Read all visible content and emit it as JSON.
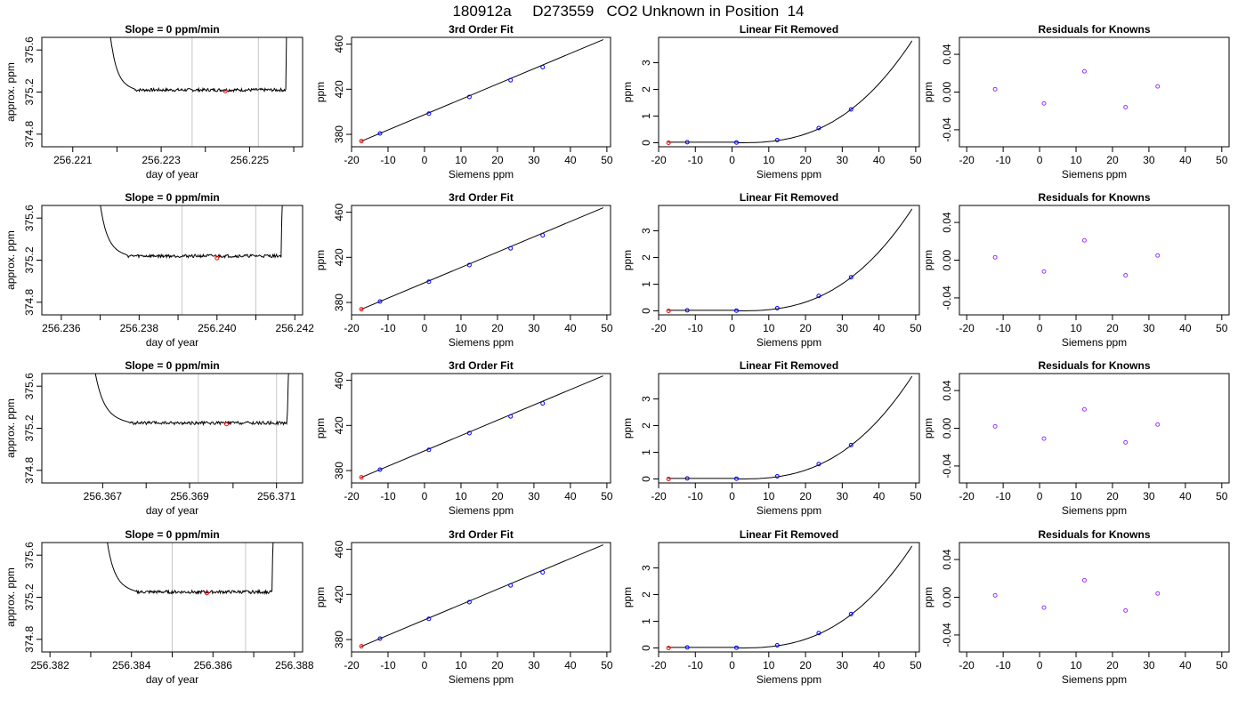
{
  "title": "180912a     D273559   CO2 Unknown in Position  14",
  "colors": {
    "trace": "#000000",
    "known_point": "#0000ff",
    "unknown_point": "#ff0000",
    "residual_point": "#9933ff",
    "window_line": "#c8c8c8"
  },
  "chart_data": [
    {
      "type": "line",
      "row": 0,
      "col": 0,
      "title": "Slope =  0  ppm/min",
      "xlabel": "day of year",
      "ylabel": "approx. ppm",
      "xlim": [
        256.2203,
        256.2262
      ],
      "ylim": [
        374.68,
        375.72
      ],
      "xticks": [
        256.221,
        256.222,
        256.223,
        256.224,
        256.225,
        256.226
      ],
      "xtick_labels": [
        "256.221",
        "",
        "256.223",
        "",
        "256.225",
        ""
      ],
      "yticks": [
        374.8,
        375.2,
        375.6
      ],
      "ytick_labels": [
        "374.8",
        "375.2",
        "375.6"
      ],
      "window": [
        256.2237,
        256.2252
      ],
      "unknown_point": [
        256.22445,
        375.21
      ],
      "trace": {
        "x0": 256.2217,
        "x1": 256.2259,
        "start": 376.6,
        "end": 376.6,
        "plateau": 375.22,
        "drop_end": 256.2224,
        "rise_start": 256.22582
      }
    },
    {
      "type": "scatter",
      "row": 0,
      "col": 1,
      "title": "3rd Order Fit",
      "xlabel": "Siemens ppm",
      "ylabel": "ppm",
      "xlim": [
        -20,
        51
      ],
      "ylim": [
        369,
        466
      ],
      "xticks": [
        -20,
        -10,
        0,
        10,
        20,
        30,
        40,
        50
      ],
      "xtick_labels": [
        "-20",
        "-10",
        "0",
        "10",
        "20",
        "30",
        "40",
        "50"
      ],
      "yticks": [
        380,
        420,
        460
      ],
      "ytick_labels": [
        "380",
        "420",
        "460"
      ],
      "known_points": [
        [
          -12.2,
          380.8
        ],
        [
          1.2,
          398.4
        ],
        [
          12.3,
          413.2
        ],
        [
          23.6,
          428.0
        ],
        [
          32.4,
          439.6
        ]
      ],
      "unknown_point": [
        -17.3,
        374.0
      ],
      "fit_line": [
        [
          -17.5,
          373.7
        ],
        [
          49,
          464
        ]
      ]
    },
    {
      "type": "scatter",
      "row": 0,
      "col": 2,
      "title": "Linear Fit Removed",
      "xlabel": "Siemens ppm",
      "ylabel": "ppm",
      "xlim": [
        -20,
        51
      ],
      "ylim": [
        -0.15,
        3.95
      ],
      "xticks": [
        -20,
        -10,
        0,
        10,
        20,
        30,
        40,
        50
      ],
      "xtick_labels": [
        "-20",
        "-10",
        "0",
        "10",
        "20",
        "30",
        "40",
        "50"
      ],
      "yticks": [
        0,
        1,
        2,
        3
      ],
      "ytick_labels": [
        "0",
        "1",
        "2",
        "3"
      ],
      "known_points": [
        [
          -12.2,
          0.02
        ],
        [
          1.2,
          0.01
        ],
        [
          12.3,
          0.1
        ],
        [
          23.6,
          0.55
        ],
        [
          32.4,
          1.25
        ]
      ],
      "unknown_point": [
        -17.3,
        0.0
      ],
      "fit_curve": {
        "x0": -17.5,
        "x1": 49,
        "top": 3.82
      }
    },
    {
      "type": "scatter",
      "row": 0,
      "col": 3,
      "title": "Residuals for Knowns",
      "xlabel": "Siemens ppm",
      "ylabel": "ppm",
      "xlim": [
        -22,
        52
      ],
      "ylim": [
        -0.058,
        0.058
      ],
      "xticks": [
        -20,
        -10,
        0,
        10,
        20,
        30,
        40,
        50
      ],
      "xtick_labels": [
        "-20",
        "-10",
        "0",
        "10",
        "20",
        "30",
        "40",
        "50"
      ],
      "yticks": [
        -0.04,
        0.0,
        0.04
      ],
      "ytick_labels": [
        "-0.04",
        "0.00",
        "0.04"
      ],
      "residual_points": [
        [
          -12.2,
          0.003
        ],
        [
          1.2,
          -0.012
        ],
        [
          12.3,
          0.022
        ],
        [
          23.6,
          -0.016
        ],
        [
          32.4,
          0.006
        ]
      ]
    },
    {
      "type": "line",
      "row": 1,
      "col": 0,
      "title": "Slope =  0  ppm/min",
      "xlabel": "day of year",
      "ylabel": "approx. ppm",
      "xlim": [
        256.2355,
        256.2422
      ],
      "ylim": [
        374.68,
        375.72
      ],
      "xticks": [
        256.236,
        256.237,
        256.238,
        256.239,
        256.24,
        256.241,
        256.242
      ],
      "xtick_labels": [
        "256.236",
        "",
        "256.238",
        "",
        "256.240",
        "",
        "256.242"
      ],
      "yticks": [
        374.8,
        375.2,
        375.6
      ],
      "ytick_labels": [
        "374.8",
        "375.2",
        "375.6"
      ],
      "window": [
        256.2391,
        256.241
      ],
      "unknown_point": [
        256.24,
        375.22
      ],
      "trace": {
        "x0": 256.2368,
        "x1": 256.2418,
        "start": 376.6,
        "end": 376.6,
        "plateau": 375.24,
        "drop_end": 256.2377,
        "rise_start": 256.24165
      }
    },
    {
      "type": "scatter",
      "row": 1,
      "col": 1,
      "title": "3rd Order Fit",
      "xlabel": "Siemens ppm",
      "ylabel": "ppm",
      "xlim": [
        -20,
        51
      ],
      "ylim": [
        369,
        466
      ],
      "xticks": [
        -20,
        -10,
        0,
        10,
        20,
        30,
        40,
        50
      ],
      "xtick_labels": [
        "-20",
        "-10",
        "0",
        "10",
        "20",
        "30",
        "40",
        "50"
      ],
      "yticks": [
        380,
        420,
        460
      ],
      "ytick_labels": [
        "380",
        "420",
        "460"
      ],
      "known_points": [
        [
          -12.2,
          380.8
        ],
        [
          1.2,
          398.4
        ],
        [
          12.3,
          413.2
        ],
        [
          23.6,
          428.0
        ],
        [
          32.4,
          439.6
        ]
      ],
      "unknown_point": [
        -17.3,
        374.0
      ],
      "fit_line": [
        [
          -17.5,
          373.7
        ],
        [
          49,
          464
        ]
      ]
    },
    {
      "type": "scatter",
      "row": 1,
      "col": 2,
      "title": "Linear Fit Removed",
      "xlabel": "Siemens ppm",
      "ylabel": "ppm",
      "xlim": [
        -20,
        51
      ],
      "ylim": [
        -0.15,
        3.95
      ],
      "xticks": [
        -20,
        -10,
        0,
        10,
        20,
        30,
        40,
        50
      ],
      "xtick_labels": [
        "-20",
        "-10",
        "0",
        "10",
        "20",
        "30",
        "40",
        "50"
      ],
      "yticks": [
        0,
        1,
        2,
        3
      ],
      "ytick_labels": [
        "0",
        "1",
        "2",
        "3"
      ],
      "known_points": [
        [
          -12.2,
          0.02
        ],
        [
          1.2,
          0.01
        ],
        [
          12.3,
          0.1
        ],
        [
          23.6,
          0.56
        ],
        [
          32.4,
          1.26
        ]
      ],
      "unknown_point": [
        -17.3,
        0.0
      ],
      "fit_curve": {
        "x0": -17.5,
        "x1": 49,
        "top": 3.82
      }
    },
    {
      "type": "scatter",
      "row": 1,
      "col": 3,
      "title": "Residuals for Knowns",
      "xlabel": "Siemens ppm",
      "ylabel": "ppm",
      "xlim": [
        -22,
        52
      ],
      "ylim": [
        -0.058,
        0.058
      ],
      "xticks": [
        -20,
        -10,
        0,
        10,
        20,
        30,
        40,
        50
      ],
      "xtick_labels": [
        "-20",
        "-10",
        "0",
        "10",
        "20",
        "30",
        "40",
        "50"
      ],
      "yticks": [
        -0.04,
        0.0,
        0.04
      ],
      "ytick_labels": [
        "-0.04",
        "0.00",
        "0.04"
      ],
      "residual_points": [
        [
          -12.2,
          0.003
        ],
        [
          1.2,
          -0.012
        ],
        [
          12.3,
          0.021
        ],
        [
          23.6,
          -0.016
        ],
        [
          32.4,
          0.005
        ]
      ]
    },
    {
      "type": "line",
      "row": 2,
      "col": 0,
      "title": "Slope =  0  ppm/min",
      "xlabel": "day of year",
      "ylabel": "approx. ppm",
      "xlim": [
        256.3656,
        256.3716
      ],
      "ylim": [
        374.68,
        375.72
      ],
      "xticks": [
        256.367,
        256.368,
        256.369,
        256.37,
        256.371
      ],
      "xtick_labels": [
        "256.367",
        "",
        "256.369",
        "",
        "256.371"
      ],
      "yticks": [
        374.8,
        375.2,
        375.6
      ],
      "ytick_labels": [
        "374.8",
        "375.2",
        "375.6"
      ],
      "window": [
        256.3692,
        256.371
      ],
      "unknown_point": [
        256.36985,
        375.24
      ],
      "trace": {
        "x0": 256.3666,
        "x1": 256.3714,
        "start": 376.6,
        "end": 376.6,
        "plateau": 375.25,
        "drop_end": 256.3676,
        "rise_start": 256.37125
      }
    },
    {
      "type": "scatter",
      "row": 2,
      "col": 1,
      "title": "3rd Order Fit",
      "xlabel": "Siemens ppm",
      "ylabel": "ppm",
      "xlim": [
        -20,
        51
      ],
      "ylim": [
        369,
        466
      ],
      "xticks": [
        -20,
        -10,
        0,
        10,
        20,
        30,
        40,
        50
      ],
      "xtick_labels": [
        "-20",
        "-10",
        "0",
        "10",
        "20",
        "30",
        "40",
        "50"
      ],
      "yticks": [
        380,
        420,
        460
      ],
      "ytick_labels": [
        "380",
        "420",
        "460"
      ],
      "known_points": [
        [
          -12.2,
          380.8
        ],
        [
          1.2,
          398.4
        ],
        [
          12.3,
          413.2
        ],
        [
          23.6,
          428.0
        ],
        [
          32.4,
          439.6
        ]
      ],
      "unknown_point": [
        -17.3,
        374.0
      ],
      "fit_line": [
        [
          -17.5,
          373.7
        ],
        [
          49,
          464
        ]
      ]
    },
    {
      "type": "scatter",
      "row": 2,
      "col": 2,
      "title": "Linear Fit Removed",
      "xlabel": "Siemens ppm",
      "ylabel": "ppm",
      "xlim": [
        -20,
        51
      ],
      "ylim": [
        -0.15,
        3.95
      ],
      "xticks": [
        -20,
        -10,
        0,
        10,
        20,
        30,
        40,
        50
      ],
      "xtick_labels": [
        "-20",
        "-10",
        "0",
        "10",
        "20",
        "30",
        "40",
        "50"
      ],
      "yticks": [
        0,
        1,
        2,
        3
      ],
      "ytick_labels": [
        "0",
        "1",
        "2",
        "3"
      ],
      "known_points": [
        [
          -12.2,
          0.02
        ],
        [
          1.2,
          0.01
        ],
        [
          12.3,
          0.1
        ],
        [
          23.6,
          0.56
        ],
        [
          32.4,
          1.27
        ]
      ],
      "unknown_point": [
        -17.3,
        0.0
      ],
      "fit_curve": {
        "x0": -17.5,
        "x1": 49,
        "top": 3.85
      }
    },
    {
      "type": "scatter",
      "row": 2,
      "col": 3,
      "title": "Residuals for Knowns",
      "xlabel": "Siemens ppm",
      "ylabel": "ppm",
      "xlim": [
        -22,
        52
      ],
      "ylim": [
        -0.058,
        0.058
      ],
      "xticks": [
        -20,
        -10,
        0,
        10,
        20,
        30,
        40,
        50
      ],
      "xtick_labels": [
        "-20",
        "-10",
        "0",
        "10",
        "20",
        "30",
        "40",
        "50"
      ],
      "yticks": [
        -0.04,
        0.0,
        0.04
      ],
      "ytick_labels": [
        "-0.04",
        "0.00",
        "0.04"
      ],
      "residual_points": [
        [
          -12.2,
          0.002
        ],
        [
          1.2,
          -0.011
        ],
        [
          12.3,
          0.02
        ],
        [
          23.6,
          -0.015
        ],
        [
          32.4,
          0.004
        ]
      ]
    },
    {
      "type": "line",
      "row": 3,
      "col": 0,
      "title": "Slope =  0  ppm/min",
      "xlabel": "day of year",
      "ylabel": "approx. ppm",
      "xlim": [
        256.3818,
        256.3882
      ],
      "ylim": [
        374.68,
        375.72
      ],
      "xticks": [
        256.382,
        256.383,
        256.384,
        256.385,
        256.386,
        256.387,
        256.388
      ],
      "xtick_labels": [
        "256.382",
        "",
        "256.384",
        "",
        "256.386",
        "",
        "256.388"
      ],
      "yticks": [
        374.8,
        375.2,
        375.6
      ],
      "ytick_labels": [
        "374.8",
        "375.2",
        "375.6"
      ],
      "window": [
        256.385,
        256.3868
      ],
      "unknown_point": [
        256.38585,
        375.24
      ],
      "trace": {
        "x0": 256.3832,
        "x1": 256.3876,
        "start": 376.6,
        "end": 376.6,
        "plateau": 375.25,
        "drop_end": 256.3841,
        "rise_start": 256.38745
      }
    },
    {
      "type": "scatter",
      "row": 3,
      "col": 1,
      "title": "3rd Order Fit",
      "xlabel": "Siemens ppm",
      "ylabel": "ppm",
      "xlim": [
        -20,
        51
      ],
      "ylim": [
        369,
        466
      ],
      "xticks": [
        -20,
        -10,
        0,
        10,
        20,
        30,
        40,
        50
      ],
      "xtick_labels": [
        "-20",
        "-10",
        "0",
        "10",
        "20",
        "30",
        "40",
        "50"
      ],
      "yticks": [
        380,
        420,
        460
      ],
      "ytick_labels": [
        "380",
        "420",
        "460"
      ],
      "known_points": [
        [
          -12.2,
          380.8
        ],
        [
          1.2,
          398.4
        ],
        [
          12.3,
          413.2
        ],
        [
          23.6,
          428.0
        ],
        [
          32.4,
          439.6
        ]
      ],
      "unknown_point": [
        -17.3,
        374.0
      ],
      "fit_line": [
        [
          -17.5,
          373.7
        ],
        [
          49,
          464
        ]
      ]
    },
    {
      "type": "scatter",
      "row": 3,
      "col": 2,
      "title": "Linear Fit Removed",
      "xlabel": "Siemens ppm",
      "ylabel": "ppm",
      "xlim": [
        -20,
        51
      ],
      "ylim": [
        -0.15,
        3.95
      ],
      "xticks": [
        -20,
        -10,
        0,
        10,
        20,
        30,
        40,
        50
      ],
      "xtick_labels": [
        "-20",
        "-10",
        "0",
        "10",
        "20",
        "30",
        "40",
        "50"
      ],
      "yticks": [
        0,
        1,
        2,
        3
      ],
      "ytick_labels": [
        "0",
        "1",
        "2",
        "3"
      ],
      "known_points": [
        [
          -12.2,
          0.02
        ],
        [
          1.2,
          0.01
        ],
        [
          12.3,
          0.1
        ],
        [
          23.6,
          0.56
        ],
        [
          32.4,
          1.27
        ]
      ],
      "unknown_point": [
        -17.3,
        0.0
      ],
      "fit_curve": {
        "x0": -17.5,
        "x1": 49,
        "top": 3.82
      }
    },
    {
      "type": "scatter",
      "row": 3,
      "col": 3,
      "title": "Residuals for Knowns",
      "xlabel": "Siemens ppm",
      "ylabel": "ppm",
      "xlim": [
        -22,
        52
      ],
      "ylim": [
        -0.058,
        0.058
      ],
      "xticks": [
        -20,
        -10,
        0,
        10,
        20,
        30,
        40,
        50
      ],
      "xtick_labels": [
        "-20",
        "-10",
        "0",
        "10",
        "20",
        "30",
        "40",
        "50"
      ],
      "yticks": [
        -0.04,
        0.0,
        0.04
      ],
      "ytick_labels": [
        "-0.04",
        "0.00",
        "0.04"
      ],
      "residual_points": [
        [
          -12.2,
          0.002
        ],
        [
          1.2,
          -0.011
        ],
        [
          12.3,
          0.018
        ],
        [
          23.6,
          -0.014
        ],
        [
          32.4,
          0.004
        ]
      ]
    }
  ]
}
